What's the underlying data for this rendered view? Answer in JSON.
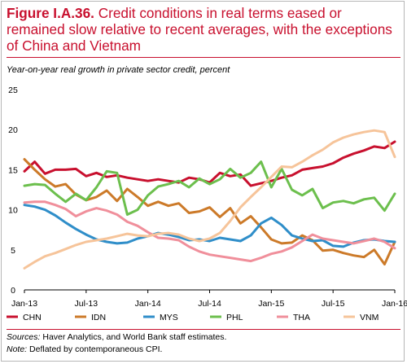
{
  "figure": {
    "label": "Figure I.A.36.",
    "caption": "Credit conditions in real terms eased or remained slow relative to recent averages, with the exceptions of China and Vietnam",
    "sources_label": "Sources:",
    "sources_text": "Haver Analytics, and World Bank staff estimates.",
    "note_label": "Note:",
    "note_text": "Deflated by contemporaneous CPI."
  },
  "chart_data": {
    "type": "line",
    "subtitle": "Year-on-year real growth in private sector credit, percent",
    "ylim": [
      0,
      25
    ],
    "yticks": [
      0,
      5,
      10,
      15,
      20,
      25
    ],
    "x_tick_labels": [
      "Jan-13",
      "Jul-13",
      "Jan-14",
      "Jul-14",
      "Jan-15",
      "Jul-15",
      "Jan-16"
    ],
    "x_tick_months": [
      0,
      6,
      12,
      18,
      24,
      30,
      36
    ],
    "x_months": [
      0,
      1,
      2,
      3,
      4,
      5,
      6,
      7,
      8,
      9,
      10,
      11,
      12,
      13,
      14,
      15,
      16,
      17,
      18,
      19,
      20,
      21,
      22,
      23,
      24,
      25,
      26,
      27,
      28,
      29,
      30,
      31,
      32,
      33,
      34,
      35,
      36
    ],
    "x_start": "Jan-13",
    "grid": false,
    "legend_position": "bottom",
    "series": [
      {
        "name": "CHN",
        "color": "#c8102e",
        "values": [
          14.8,
          16.0,
          14.5,
          15.0,
          15.0,
          15.1,
          14.2,
          14.6,
          14.1,
          14.3,
          14.0,
          13.8,
          13.6,
          13.8,
          13.6,
          13.4,
          14.0,
          13.8,
          13.4,
          14.6,
          14.2,
          14.4,
          13.0,
          13.3,
          13.6,
          14.0,
          14.3,
          15.0,
          15.2,
          15.4,
          15.8,
          16.5,
          17.0,
          17.4,
          17.9,
          17.7,
          18.5
        ]
      },
      {
        "name": "IDN",
        "color": "#cc7a29",
        "values": [
          16.3,
          15.0,
          13.8,
          12.9,
          13.2,
          11.9,
          11.2,
          11.6,
          12.4,
          11.1,
          12.6,
          11.6,
          10.5,
          11.0,
          10.5,
          10.8,
          9.6,
          9.8,
          10.3,
          9.1,
          10.2,
          8.3,
          9.2,
          7.8,
          6.3,
          5.8,
          5.9,
          6.8,
          6.2,
          4.9,
          5.0,
          4.6,
          4.3,
          4.1,
          5.0,
          3.2,
          6.0
        ]
      },
      {
        "name": "MYS",
        "color": "#2f8ec9",
        "values": [
          10.6,
          10.4,
          10.0,
          9.3,
          8.4,
          7.6,
          6.9,
          6.3,
          6.0,
          5.8,
          5.9,
          6.4,
          6.7,
          7.1,
          6.9,
          6.6,
          6.2,
          6.3,
          6.1,
          6.5,
          6.3,
          6.1,
          6.8,
          8.3,
          9.0,
          8.1,
          6.8,
          6.4,
          6.1,
          6.2,
          5.5,
          5.4,
          5.9,
          6.2,
          6.3,
          6.1,
          6.0
        ]
      },
      {
        "name": "PHL",
        "color": "#6cbf4d",
        "values": [
          13.0,
          13.2,
          13.1,
          12.0,
          11.0,
          12.0,
          11.2,
          12.8,
          14.8,
          14.6,
          9.4,
          10.0,
          11.8,
          12.9,
          13.2,
          13.6,
          12.8,
          13.9,
          13.2,
          13.8,
          15.1,
          14.0,
          14.6,
          16.0,
          12.8,
          15.1,
          12.5,
          11.8,
          12.6,
          10.2,
          10.9,
          11.1,
          10.8,
          11.3,
          11.5,
          9.9,
          12.0
        ]
      },
      {
        "name": "THA",
        "color": "#f08f9b",
        "values": [
          10.9,
          11.0,
          11.0,
          10.6,
          10.1,
          9.2,
          9.8,
          10.2,
          9.9,
          9.4,
          8.5,
          8.0,
          7.2,
          6.5,
          6.4,
          6.2,
          5.4,
          4.8,
          4.4,
          4.2,
          4.0,
          3.8,
          3.6,
          4.0,
          4.5,
          4.8,
          5.3,
          6.1,
          6.9,
          6.4,
          6.2,
          6.0,
          5.8,
          6.1,
          6.4,
          6.0,
          5.2
        ]
      },
      {
        "name": "VNM",
        "color": "#f6c49a",
        "values": [
          2.7,
          3.5,
          4.2,
          4.6,
          5.1,
          5.6,
          6.0,
          6.2,
          6.4,
          6.7,
          7.0,
          6.8,
          6.7,
          7.0,
          7.1,
          6.9,
          6.4,
          6.1,
          6.4,
          7.1,
          8.6,
          10.3,
          11.6,
          12.8,
          14.1,
          15.4,
          15.3,
          16.0,
          16.8,
          17.5,
          18.4,
          19.0,
          19.4,
          19.7,
          19.9,
          19.7,
          16.6
        ]
      }
    ]
  }
}
